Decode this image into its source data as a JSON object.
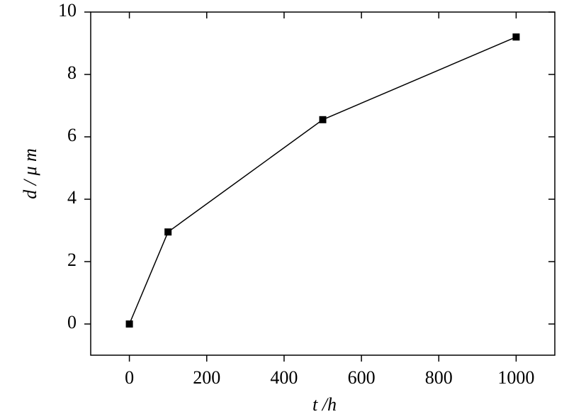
{
  "chart_data": {
    "type": "line",
    "x": [
      0,
      100,
      500,
      1000
    ],
    "series": [
      {
        "name": "d",
        "color": "#000000",
        "values": [
          0,
          2.95,
          6.55,
          9.2
        ]
      }
    ],
    "xlim": [
      -100,
      1100
    ],
    "xticks": [
      0,
      200,
      400,
      600,
      800,
      1000
    ],
    "ylim": [
      -1,
      10
    ],
    "yticks": [
      0,
      2,
      4,
      6,
      8,
      10
    ],
    "xlabel": "t /h",
    "ylabel": "d / μ m",
    "grid": false
  }
}
